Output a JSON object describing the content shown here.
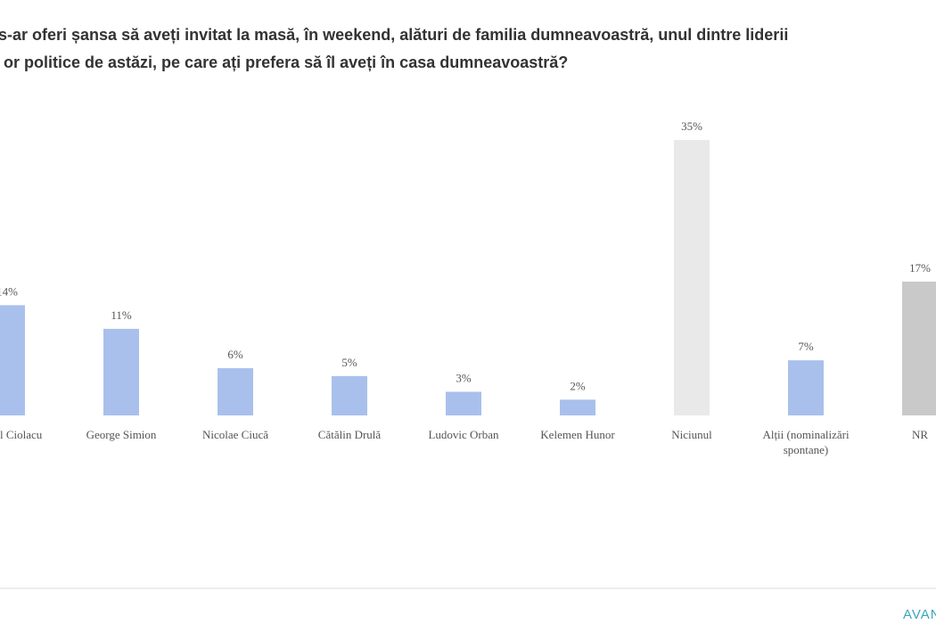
{
  "chart_data": {
    "type": "bar",
    "title": [
      "s-ar oferi șansa să aveți invitat la masă, în weekend, alături de familia dumneavoastră, unul dintre liderii",
      "or politice de astăzi, pe care ați prefera să îl aveți în casa dumneavoastră?"
    ],
    "categories": [
      "l Ciolacu",
      "George Simion",
      "Nicolae Ciucă",
      "Cătălin Drulă",
      "Ludovic Orban",
      "Kelemen Hunor",
      "Niciunul",
      "Alții (nominalizări spontane)",
      "NR"
    ],
    "values": [
      14,
      11,
      6,
      5,
      3,
      2,
      35,
      7,
      17
    ],
    "value_labels": [
      "14%",
      "11%",
      "6%",
      "5%",
      "3%",
      "2%",
      "35%",
      "7%",
      "17%"
    ],
    "colors": [
      "#a9c0ec",
      "#a9c0ec",
      "#a9c0ec",
      "#a9c0ec",
      "#a9c0ec",
      "#a9c0ec",
      "#e9e9e9",
      "#a9c0ec",
      "#c9c9c9"
    ],
    "ylim": [
      0,
      35
    ],
    "logo": "AVANG"
  }
}
